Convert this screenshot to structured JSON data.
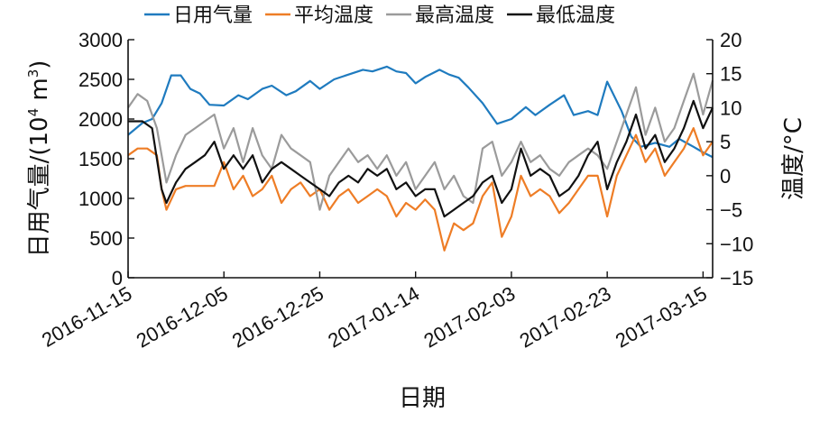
{
  "chart_data": {
    "type": "line",
    "title": "",
    "xlabel": "日期",
    "ylabel_left": "日用气量/(10⁴ m³)",
    "ylabel_left_parts": [
      "日用气量/(10",
      "4",
      " m",
      "3",
      ")"
    ],
    "ylabel_right": "温度/°C",
    "y_left_range": [
      0,
      3000
    ],
    "y_left_ticks": [
      "0",
      "500",
      "1000",
      "1500",
      "2000",
      "2500",
      "3000"
    ],
    "y_right_range": [
      -15,
      20
    ],
    "y_right_ticks": [
      "−15",
      "−10",
      "−5",
      "0",
      "5",
      "10",
      "15",
      "20"
    ],
    "x_range": [
      "2016-11-15",
      "2017-03-17"
    ],
    "x_ticks": [
      "2016-11-15",
      "2016-12-05",
      "2016-12-25",
      "2017-01-14",
      "2017-02-03",
      "2017-02-23",
      "2017-03-15"
    ],
    "grid": false,
    "legend_position": "top",
    "series": [
      {
        "name": "日用气量",
        "axis": "left",
        "color": "#1f7bbf",
        "points": [
          [
            "2016-11-15",
            1800
          ],
          [
            "2016-11-18",
            1950
          ],
          [
            "2016-11-20",
            2000
          ],
          [
            "2016-11-22",
            2200
          ],
          [
            "2016-11-24",
            2550
          ],
          [
            "2016-11-26",
            2550
          ],
          [
            "2016-11-28",
            2380
          ],
          [
            "2016-11-30",
            2320
          ],
          [
            "2016-12-02",
            2180
          ],
          [
            "2016-12-05",
            2170
          ],
          [
            "2016-12-08",
            2300
          ],
          [
            "2016-12-10",
            2250
          ],
          [
            "2016-12-13",
            2380
          ],
          [
            "2016-12-15",
            2420
          ],
          [
            "2016-12-18",
            2300
          ],
          [
            "2016-12-20",
            2350
          ],
          [
            "2016-12-23",
            2480
          ],
          [
            "2016-12-25",
            2380
          ],
          [
            "2016-12-28",
            2500
          ],
          [
            "2016-12-31",
            2560
          ],
          [
            "2017-01-03",
            2620
          ],
          [
            "2017-01-05",
            2600
          ],
          [
            "2017-01-08",
            2660
          ],
          [
            "2017-01-10",
            2600
          ],
          [
            "2017-01-12",
            2580
          ],
          [
            "2017-01-14",
            2450
          ],
          [
            "2017-01-16",
            2530
          ],
          [
            "2017-01-19",
            2620
          ],
          [
            "2017-01-21",
            2560
          ],
          [
            "2017-01-23",
            2520
          ],
          [
            "2017-01-25",
            2400
          ],
          [
            "2017-01-28",
            2200
          ],
          [
            "2017-01-31",
            1940
          ],
          [
            "2017-02-03",
            2000
          ],
          [
            "2017-02-06",
            2150
          ],
          [
            "2017-02-08",
            2050
          ],
          [
            "2017-02-11",
            2180
          ],
          [
            "2017-02-14",
            2300
          ],
          [
            "2017-02-16",
            2050
          ],
          [
            "2017-02-19",
            2100
          ],
          [
            "2017-02-21",
            2050
          ],
          [
            "2017-02-23",
            2470
          ],
          [
            "2017-02-26",
            2100
          ],
          [
            "2017-02-28",
            1780
          ],
          [
            "2017-03-02",
            1650
          ],
          [
            "2017-03-05",
            1700
          ],
          [
            "2017-03-08",
            1650
          ],
          [
            "2017-03-10",
            1750
          ],
          [
            "2017-03-13",
            1650
          ],
          [
            "2017-03-15",
            1580
          ],
          [
            "2017-03-17",
            1520
          ]
        ]
      },
      {
        "name": "平均温度",
        "axis": "right",
        "color": "#ee7d26",
        "points": [
          [
            "2016-11-15",
            3
          ],
          [
            "2016-11-17",
            4
          ],
          [
            "2016-11-19",
            4
          ],
          [
            "2016-11-21",
            3
          ],
          [
            "2016-11-22",
            -2
          ],
          [
            "2016-11-23",
            -5
          ],
          [
            "2016-11-25",
            -2
          ],
          [
            "2016-11-27",
            -1.5
          ],
          [
            "2016-11-30",
            -1.5
          ],
          [
            "2016-12-03",
            -1.5
          ],
          [
            "2016-12-05",
            2
          ],
          [
            "2016-12-07",
            -2
          ],
          [
            "2016-12-09",
            0
          ],
          [
            "2016-12-11",
            -3
          ],
          [
            "2016-12-13",
            -2
          ],
          [
            "2016-12-15",
            0
          ],
          [
            "2016-12-17",
            -4
          ],
          [
            "2016-12-19",
            -2
          ],
          [
            "2016-12-21",
            -1
          ],
          [
            "2016-12-23",
            -3
          ],
          [
            "2016-12-25",
            -2
          ],
          [
            "2016-12-27",
            -5
          ],
          [
            "2016-12-29",
            -3
          ],
          [
            "2016-12-31",
            -2
          ],
          [
            "2017-01-02",
            -4
          ],
          [
            "2017-01-04",
            -3
          ],
          [
            "2017-01-06",
            -2
          ],
          [
            "2017-01-08",
            -3
          ],
          [
            "2017-01-10",
            -6
          ],
          [
            "2017-01-12",
            -4
          ],
          [
            "2017-01-14",
            -5
          ],
          [
            "2017-01-16",
            -3.5
          ],
          [
            "2017-01-18",
            -5
          ],
          [
            "2017-01-20",
            -11
          ],
          [
            "2017-01-22",
            -7
          ],
          [
            "2017-01-24",
            -8
          ],
          [
            "2017-01-26",
            -7
          ],
          [
            "2017-01-28",
            -3
          ],
          [
            "2017-01-30",
            -1
          ],
          [
            "2017-02-01",
            -9
          ],
          [
            "2017-02-03",
            -6
          ],
          [
            "2017-02-05",
            0
          ],
          [
            "2017-02-07",
            -3
          ],
          [
            "2017-02-09",
            -2
          ],
          [
            "2017-02-11",
            -3
          ],
          [
            "2017-02-13",
            -5.5
          ],
          [
            "2017-02-15",
            -4
          ],
          [
            "2017-02-17",
            -2
          ],
          [
            "2017-02-19",
            0
          ],
          [
            "2017-02-21",
            0
          ],
          [
            "2017-02-23",
            -6
          ],
          [
            "2017-02-25",
            0
          ],
          [
            "2017-02-27",
            3
          ],
          [
            "2017-03-01",
            6
          ],
          [
            "2017-03-03",
            2
          ],
          [
            "2017-03-05",
            4
          ],
          [
            "2017-03-07",
            0
          ],
          [
            "2017-03-09",
            2
          ],
          [
            "2017-03-11",
            4
          ],
          [
            "2017-03-13",
            7
          ],
          [
            "2017-03-15",
            3
          ],
          [
            "2017-03-17",
            5
          ]
        ]
      },
      {
        "name": "最高温度",
        "axis": "right",
        "color": "#9b9b9b",
        "points": [
          [
            "2016-11-15",
            10
          ],
          [
            "2016-11-17",
            12
          ],
          [
            "2016-11-19",
            11
          ],
          [
            "2016-11-21",
            7
          ],
          [
            "2016-11-23",
            -1
          ],
          [
            "2016-11-25",
            3
          ],
          [
            "2016-11-27",
            6
          ],
          [
            "2016-11-29",
            7
          ],
          [
            "2016-12-01",
            8
          ],
          [
            "2016-12-03",
            9
          ],
          [
            "2016-12-05",
            4
          ],
          [
            "2016-12-07",
            7
          ],
          [
            "2016-12-09",
            2
          ],
          [
            "2016-12-11",
            7
          ],
          [
            "2016-12-13",
            3
          ],
          [
            "2016-12-15",
            1
          ],
          [
            "2016-12-17",
            6
          ],
          [
            "2016-12-19",
            4
          ],
          [
            "2016-12-21",
            3
          ],
          [
            "2016-12-23",
            2
          ],
          [
            "2016-12-25",
            -5
          ],
          [
            "2016-12-27",
            0
          ],
          [
            "2016-12-29",
            2
          ],
          [
            "2016-12-31",
            4
          ],
          [
            "2017-01-02",
            2
          ],
          [
            "2017-01-04",
            3
          ],
          [
            "2017-01-06",
            1
          ],
          [
            "2017-01-08",
            3
          ],
          [
            "2017-01-10",
            0
          ],
          [
            "2017-01-12",
            2
          ],
          [
            "2017-01-14",
            -2
          ],
          [
            "2017-01-16",
            0
          ],
          [
            "2017-01-18",
            2
          ],
          [
            "2017-01-20",
            -2
          ],
          [
            "2017-01-22",
            0
          ],
          [
            "2017-01-24",
            -3
          ],
          [
            "2017-01-26",
            -4
          ],
          [
            "2017-01-28",
            4
          ],
          [
            "2017-01-30",
            5
          ],
          [
            "2017-02-01",
            0
          ],
          [
            "2017-02-03",
            2
          ],
          [
            "2017-02-05",
            5
          ],
          [
            "2017-02-07",
            2
          ],
          [
            "2017-02-09",
            3
          ],
          [
            "2017-02-11",
            1
          ],
          [
            "2017-02-13",
            0
          ],
          [
            "2017-02-15",
            2
          ],
          [
            "2017-02-17",
            3
          ],
          [
            "2017-02-19",
            4
          ],
          [
            "2017-02-21",
            3
          ],
          [
            "2017-02-23",
            1
          ],
          [
            "2017-02-25",
            5
          ],
          [
            "2017-02-27",
            9
          ],
          [
            "2017-03-01",
            13
          ],
          [
            "2017-03-03",
            6
          ],
          [
            "2017-03-05",
            10
          ],
          [
            "2017-03-07",
            5
          ],
          [
            "2017-03-09",
            7
          ],
          [
            "2017-03-11",
            11
          ],
          [
            "2017-03-13",
            15
          ],
          [
            "2017-03-15",
            9
          ],
          [
            "2017-03-17",
            14
          ]
        ]
      },
      {
        "name": "最低温度",
        "axis": "right",
        "color": "#111111",
        "points": [
          [
            "2016-11-15",
            8
          ],
          [
            "2016-11-18",
            8
          ],
          [
            "2016-11-20",
            7
          ],
          [
            "2016-11-22",
            -2
          ],
          [
            "2016-11-23",
            -4
          ],
          [
            "2016-11-25",
            -1
          ],
          [
            "2016-11-27",
            1
          ],
          [
            "2016-11-29",
            2
          ],
          [
            "2016-12-01",
            3
          ],
          [
            "2016-12-03",
            5
          ],
          [
            "2016-12-05",
            1
          ],
          [
            "2016-12-07",
            3
          ],
          [
            "2016-12-09",
            1
          ],
          [
            "2016-12-11",
            3
          ],
          [
            "2016-12-13",
            -1
          ],
          [
            "2016-12-15",
            1
          ],
          [
            "2016-12-17",
            2
          ],
          [
            "2016-12-19",
            1
          ],
          [
            "2016-12-21",
            0
          ],
          [
            "2016-12-23",
            -1
          ],
          [
            "2016-12-25",
            -2
          ],
          [
            "2016-12-27",
            -3
          ],
          [
            "2016-12-29",
            -1
          ],
          [
            "2016-12-31",
            0
          ],
          [
            "2017-01-02",
            -1
          ],
          [
            "2017-01-04",
            1
          ],
          [
            "2017-01-06",
            0
          ],
          [
            "2017-01-08",
            1
          ],
          [
            "2017-01-10",
            -2
          ],
          [
            "2017-01-12",
            -1
          ],
          [
            "2017-01-14",
            -3
          ],
          [
            "2017-01-16",
            -2
          ],
          [
            "2017-01-18",
            -2
          ],
          [
            "2017-01-20",
            -6
          ],
          [
            "2017-01-22",
            -5
          ],
          [
            "2017-01-24",
            -4
          ],
          [
            "2017-01-26",
            -3
          ],
          [
            "2017-01-28",
            -1
          ],
          [
            "2017-01-30",
            0
          ],
          [
            "2017-02-01",
            -4
          ],
          [
            "2017-02-03",
            -2
          ],
          [
            "2017-02-05",
            4
          ],
          [
            "2017-02-07",
            0
          ],
          [
            "2017-02-09",
            1
          ],
          [
            "2017-02-11",
            0
          ],
          [
            "2017-02-13",
            -3
          ],
          [
            "2017-02-15",
            -2
          ],
          [
            "2017-02-17",
            0
          ],
          [
            "2017-02-19",
            3
          ],
          [
            "2017-02-21",
            5
          ],
          [
            "2017-02-23",
            -2
          ],
          [
            "2017-02-25",
            2
          ],
          [
            "2017-02-27",
            5
          ],
          [
            "2017-03-01",
            9
          ],
          [
            "2017-03-03",
            4
          ],
          [
            "2017-03-05",
            6
          ],
          [
            "2017-03-07",
            2
          ],
          [
            "2017-03-09",
            4
          ],
          [
            "2017-03-11",
            7
          ],
          [
            "2017-03-13",
            11
          ],
          [
            "2017-03-15",
            7
          ],
          [
            "2017-03-17",
            10
          ]
        ]
      }
    ]
  }
}
